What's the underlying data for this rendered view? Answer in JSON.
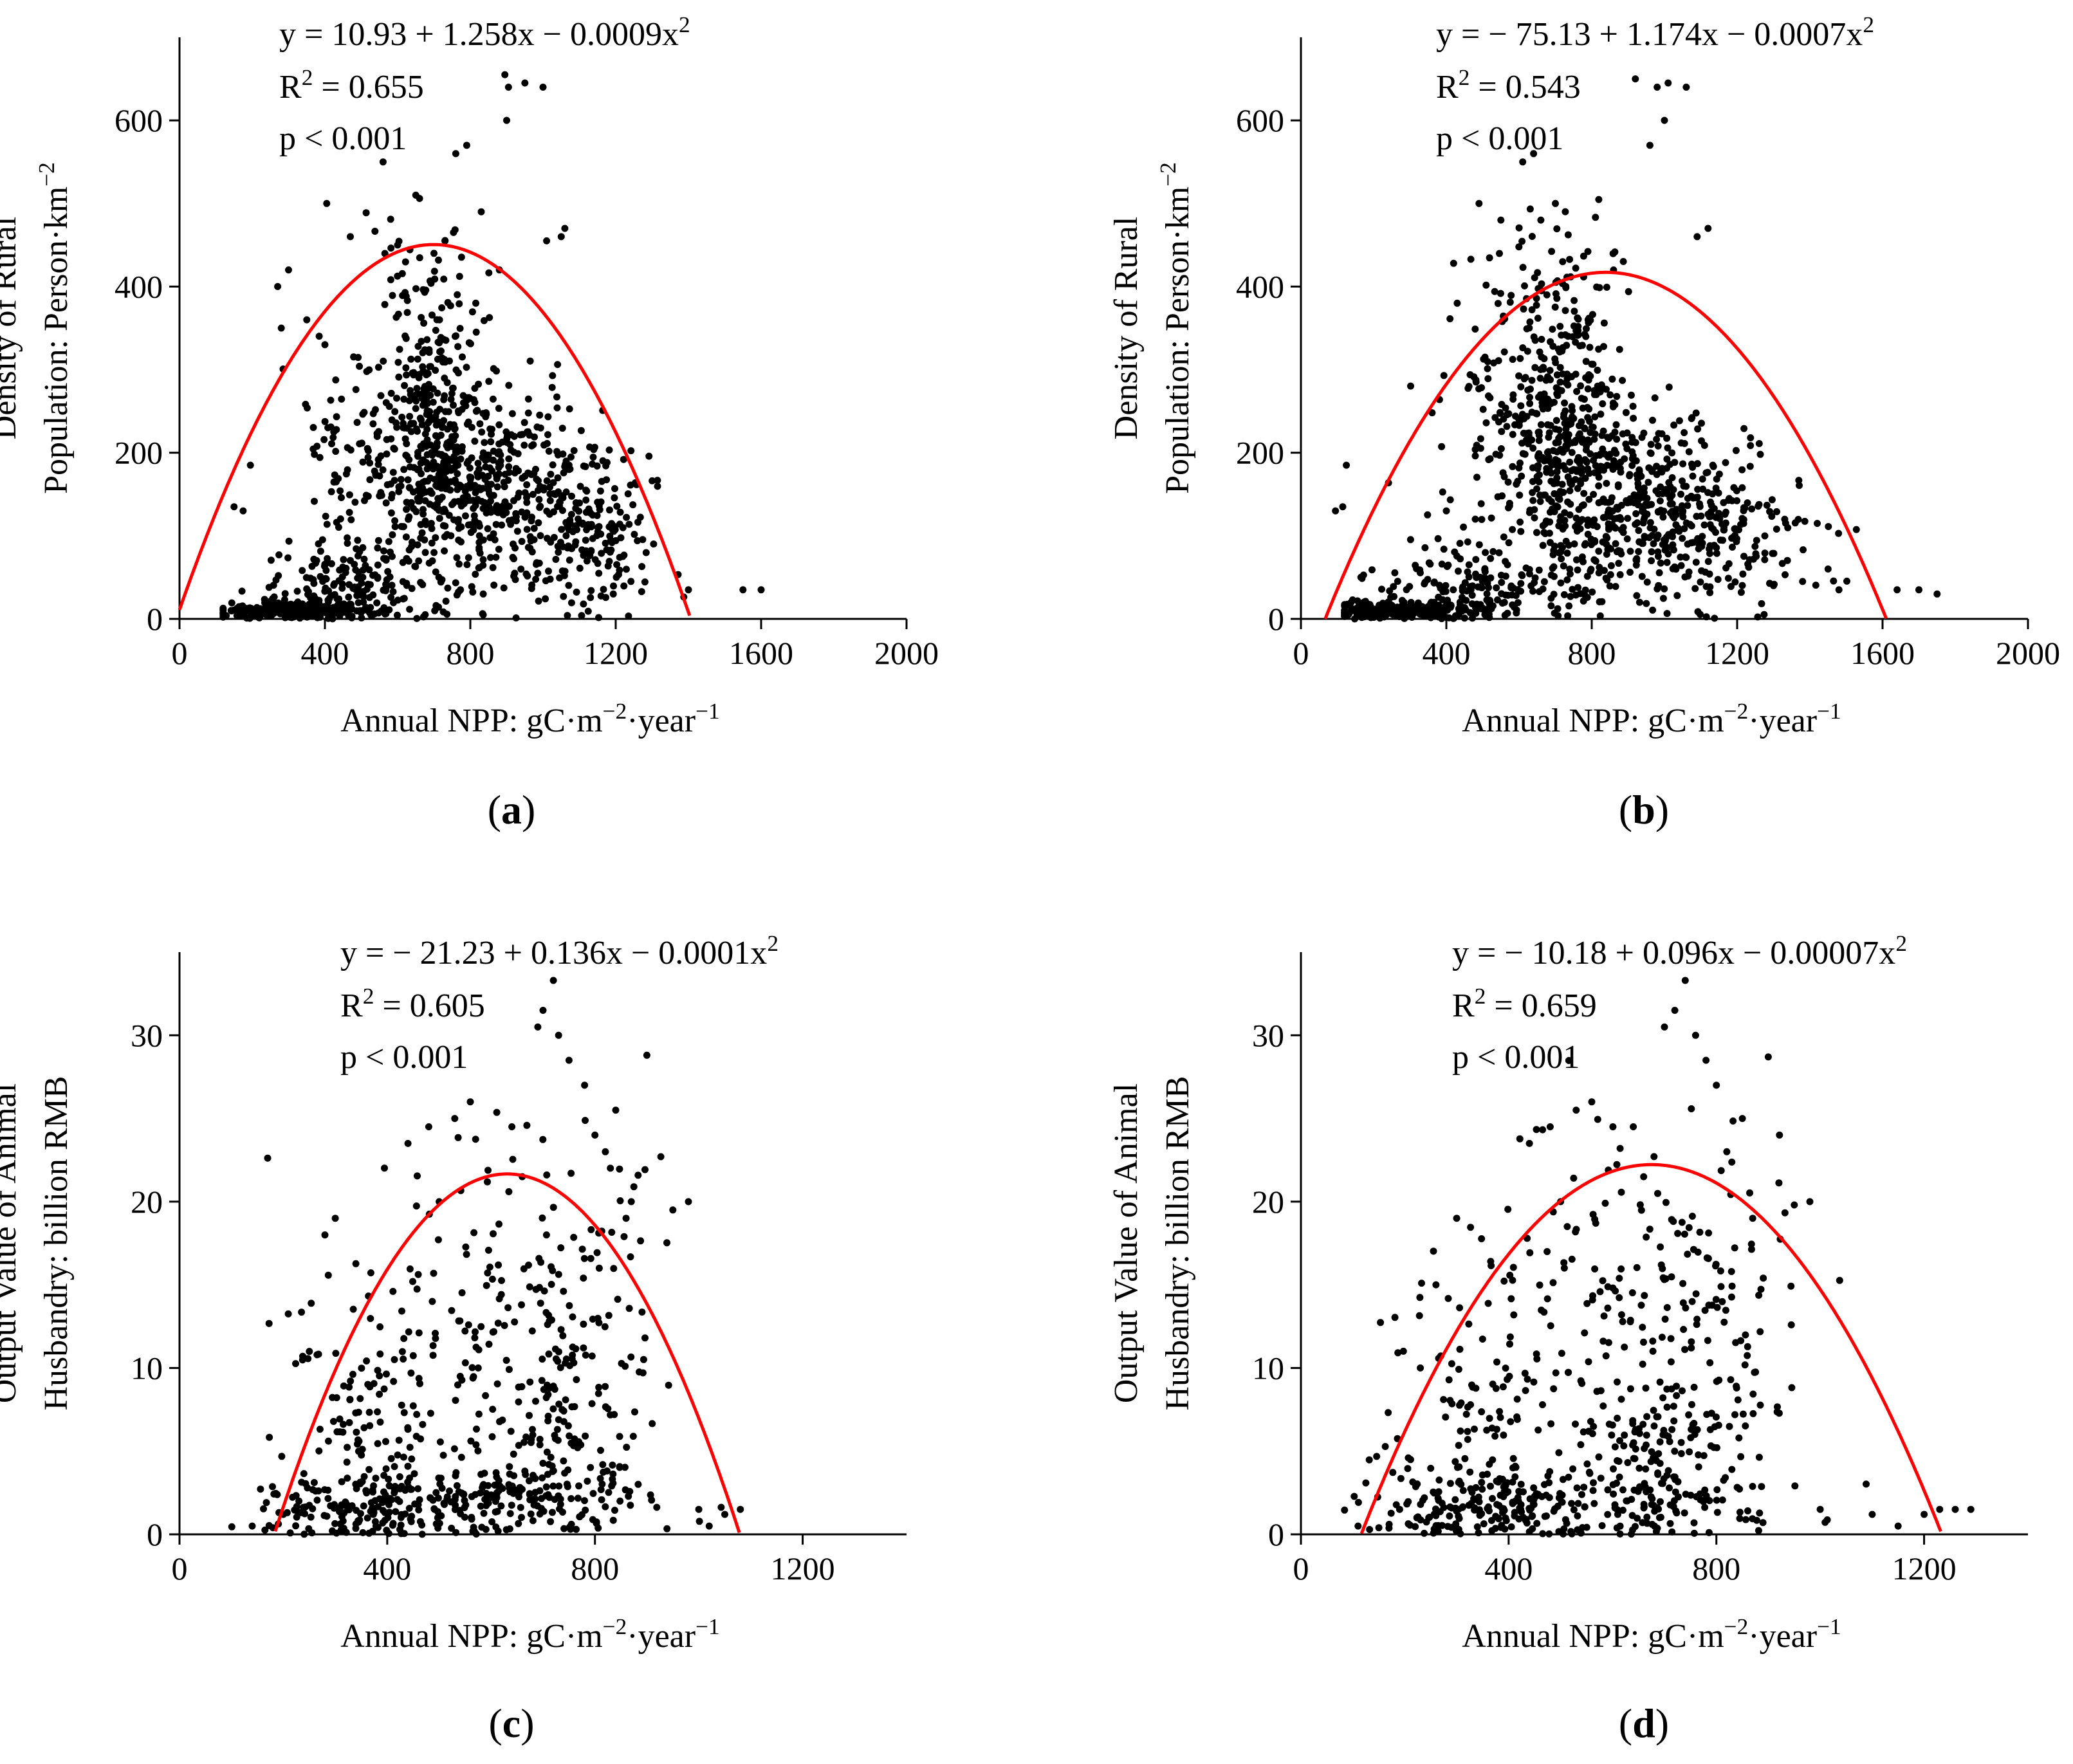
{
  "figure": {
    "panels": [
      {
        "id": "a",
        "label_open": "(",
        "label_letter": "a",
        "label_close": ")"
      },
      {
        "id": "b",
        "label_open": "(",
        "label_letter": "b",
        "label_close": ")"
      },
      {
        "id": "c",
        "label_open": "(",
        "label_letter": "c",
        "label_close": ")"
      },
      {
        "id": "d",
        "label_open": "(",
        "label_letter": "d",
        "label_close": ")"
      }
    ]
  },
  "chart_data": [
    {
      "type": "scatter",
      "panel": "a",
      "xlabel": {
        "base": "Annual NPP: gC·m",
        "sup1": "−2",
        "mid": "·year",
        "sup2": "−1"
      },
      "ylabel_line1": "Density of Rural",
      "ylabel_line2": {
        "base": "Population: Person·km",
        "sup": "−2"
      },
      "xlim": [
        0,
        2000
      ],
      "ylim": [
        0,
        700
      ],
      "xticks": [
        0,
        400,
        800,
        1200,
        1600,
        2000
      ],
      "yticks": [
        0,
        200,
        400,
        600
      ],
      "fit": {
        "a": 10.93,
        "b": 1.258,
        "c": -0.0009,
        "color": "#ff0000"
      },
      "equation": {
        "base": "y = 10.93 + 1.258x − 0.0009x",
        "sup": "2"
      },
      "r2": {
        "r": "R",
        "sup": "2",
        "rest": " = 0.655"
      },
      "p": "p < 0.001",
      "clusters": [
        {
          "cx": 320,
          "cy": 10,
          "sx": 110,
          "sy": 6,
          "n": 220
        },
        {
          "cx": 480,
          "cy": 40,
          "sx": 130,
          "sy": 25,
          "n": 160
        },
        {
          "cx": 700,
          "cy": 230,
          "sx": 70,
          "sy": 80,
          "n": 320
        },
        {
          "cx": 880,
          "cy": 150,
          "sx": 150,
          "sy": 60,
          "n": 420
        },
        {
          "cx": 1120,
          "cy": 110,
          "sx": 110,
          "sy": 55,
          "n": 160
        },
        {
          "cx": 500,
          "cy": 200,
          "sx": 80,
          "sy": 60,
          "n": 80
        },
        {
          "cx": 650,
          "cy": 420,
          "sx": 110,
          "sy": 40,
          "n": 40
        }
      ],
      "points": [
        [
          150,
          135
        ],
        [
          175,
          130
        ],
        [
          195,
          185
        ],
        [
          270,
          400
        ],
        [
          280,
          350
        ],
        [
          300,
          420
        ],
        [
          350,
          360
        ],
        [
          400,
          330
        ],
        [
          405,
          500
        ],
        [
          470,
          460
        ],
        [
          560,
          550
        ],
        [
          600,
          450
        ],
        [
          650,
          510
        ],
        [
          700,
          440
        ],
        [
          760,
          560
        ],
        [
          790,
          570
        ],
        [
          815,
          380
        ],
        [
          830,
          490
        ],
        [
          880,
          420
        ],
        [
          895,
          655
        ],
        [
          900,
          600
        ],
        [
          905,
          640
        ],
        [
          950,
          645
        ],
        [
          1000,
          640
        ],
        [
          1010,
          455
        ],
        [
          1050,
          460
        ],
        [
          1060,
          470
        ],
        [
          1400,
          35
        ],
        [
          1550,
          35
        ],
        [
          1600,
          35
        ]
      ]
    },
    {
      "type": "scatter",
      "panel": "b",
      "xlabel": {
        "base": "Annual NPP: gC·m",
        "sup1": "−2",
        "mid": "·year",
        "sup2": "−1"
      },
      "ylabel_line1": "Density of Rural",
      "ylabel_line2": {
        "base": "Population: Person·km",
        "sup": "−2"
      },
      "xlim": [
        0,
        2000
      ],
      "ylim": [
        0,
        700
      ],
      "xticks": [
        0,
        400,
        800,
        1200,
        1600,
        2000
      ],
      "yticks": [
        0,
        200,
        400,
        600
      ],
      "fit": {
        "a": -75.13,
        "b": 1.174,
        "c": -0.0007,
        "color": "#ff0000"
      },
      "equation": {
        "base": "y = − 75.13 + 1.174x − 0.0007x",
        "sup": "2"
      },
      "r2": {
        "r": "R",
        "sup": "2",
        "rest": " = 0.543"
      },
      "p": "p < 0.001",
      "clusters": [
        {
          "cx": 300,
          "cy": 10,
          "sx": 120,
          "sy": 6,
          "n": 220
        },
        {
          "cx": 480,
          "cy": 40,
          "sx": 140,
          "sy": 25,
          "n": 150
        },
        {
          "cx": 720,
          "cy": 230,
          "sx": 75,
          "sy": 85,
          "n": 320
        },
        {
          "cx": 880,
          "cy": 140,
          "sx": 160,
          "sy": 60,
          "n": 420
        },
        {
          "cx": 1150,
          "cy": 110,
          "sx": 130,
          "sy": 55,
          "n": 180
        },
        {
          "cx": 550,
          "cy": 250,
          "sx": 80,
          "sy": 70,
          "n": 80
        },
        {
          "cx": 650,
          "cy": 420,
          "sx": 110,
          "sy": 40,
          "n": 40
        }
      ],
      "points": [
        [
          95,
          130
        ],
        [
          115,
          135
        ],
        [
          125,
          185
        ],
        [
          160,
          15
        ],
        [
          400,
          130
        ],
        [
          430,
          380
        ],
        [
          490,
          500
        ],
        [
          550,
          480
        ],
        [
          610,
          550
        ],
        [
          640,
          560
        ],
        [
          660,
          480
        ],
        [
          700,
          500
        ],
        [
          720,
          430
        ],
        [
          790,
          360
        ],
        [
          860,
          420
        ],
        [
          920,
          650
        ],
        [
          960,
          570
        ],
        [
          980,
          640
        ],
        [
          1000,
          600
        ],
        [
          1010,
          645
        ],
        [
          1060,
          640
        ],
        [
          1090,
          460
        ],
        [
          1120,
          470
        ],
        [
          1300,
          40
        ],
        [
          1380,
          45
        ],
        [
          1450,
          60
        ],
        [
          1480,
          35
        ],
        [
          1640,
          35
        ],
        [
          1700,
          35
        ],
        [
          1750,
          30
        ]
      ]
    },
    {
      "type": "scatter",
      "panel": "c",
      "xlabel": {
        "base": "Annual NPP: gC·m",
        "sup1": "−2",
        "mid": "·year",
        "sup2": "−1"
      },
      "ylabel_line1": "Output Value of Animal",
      "ylabel_line2": {
        "base": "Husbandry: billion RMB",
        "sup": ""
      },
      "xlim": [
        0,
        1400
      ],
      "ylim": [
        0,
        35
      ],
      "xticks": [
        0,
        400,
        800,
        1200
      ],
      "yticks": [
        0,
        10,
        20,
        30
      ],
      "fit": {
        "a": -21.23,
        "b": 0.136,
        "c": -0.0001078,
        "color": "#ff0000"
      },
      "equation": {
        "base": "y = − 21.23 + 0.136x − 0.0001x",
        "sup": "2"
      },
      "r2": {
        "r": "R",
        "sup": "2",
        "rest": " = 0.605"
      },
      "p": "p < 0.001",
      "clusters": [
        {
          "cx": 330,
          "cy": 1.5,
          "sx": 90,
          "sy": 1.2,
          "n": 150
        },
        {
          "cx": 600,
          "cy": 2.0,
          "sx": 150,
          "sy": 1.2,
          "n": 140
        },
        {
          "cx": 340,
          "cy": 8,
          "sx": 80,
          "sy": 4,
          "n": 80
        },
        {
          "cx": 560,
          "cy": 12,
          "sx": 120,
          "sy": 6,
          "n": 130
        },
        {
          "cx": 760,
          "cy": 12,
          "sx": 90,
          "sy": 6,
          "n": 130
        },
        {
          "cx": 720,
          "cy": 4,
          "sx": 120,
          "sy": 2.5,
          "n": 80
        }
      ],
      "points": [
        [
          140,
          0.5
        ],
        [
          180,
          0.4
        ],
        [
          200,
          1.2
        ],
        [
          230,
          2
        ],
        [
          250,
          11
        ],
        [
          280,
          18
        ],
        [
          300,
          19
        ],
        [
          440,
          23.5
        ],
        [
          480,
          24.5
        ],
        [
          500,
          20
        ],
        [
          530,
          25
        ],
        [
          560,
          26
        ],
        [
          640,
          24.5
        ],
        [
          660,
          21.5
        ],
        [
          690,
          30.5
        ],
        [
          700,
          31.5
        ],
        [
          720,
          33.3
        ],
        [
          730,
          30
        ],
        [
          750,
          28.5
        ],
        [
          780,
          27
        ],
        [
          800,
          24
        ],
        [
          820,
          23
        ],
        [
          840,
          25.5
        ],
        [
          860,
          19
        ],
        [
          870,
          20
        ],
        [
          900,
          28.8
        ],
        [
          950,
          19.5
        ],
        [
          980,
          20
        ],
        [
          1000,
          1.5
        ],
        [
          1020,
          0.5
        ],
        [
          1050,
          1.2
        ],
        [
          1080,
          1.5
        ]
      ]
    },
    {
      "type": "scatter",
      "panel": "d",
      "xlabel": {
        "base": "Annual NPP: gC·m",
        "sup1": "−2",
        "mid": "·year",
        "sup2": "−1"
      },
      "ylabel_line1": "Output Value of Animal",
      "ylabel_line2": {
        "base": "Husbandry: billion RMB",
        "sup": ""
      },
      "xlim": [
        0,
        1400
      ],
      "ylim": [
        0,
        35
      ],
      "xticks": [
        0,
        400,
        800,
        1200
      ],
      "yticks": [
        0,
        10,
        20,
        30
      ],
      "fit": {
        "a": -10.18,
        "b": 0.096,
        "c": -7.11e-05,
        "color": "#ff0000"
      },
      "equation": {
        "base": "y = − 10.18 + 0.096x − 0.00007x",
        "sup": "2"
      },
      "r2": {
        "r": "R",
        "sup": "2",
        "rest": " = 0.659"
      },
      "p": "p < 0.001",
      "clusters": [
        {
          "cx": 330,
          "cy": 1.5,
          "sx": 100,
          "sy": 1.2,
          "n": 150
        },
        {
          "cx": 620,
          "cy": 2.0,
          "sx": 160,
          "sy": 1.2,
          "n": 140
        },
        {
          "cx": 330,
          "cy": 8,
          "sx": 90,
          "sy": 4,
          "n": 80
        },
        {
          "cx": 560,
          "cy": 12,
          "sx": 120,
          "sy": 6,
          "n": 130
        },
        {
          "cx": 760,
          "cy": 12,
          "sx": 90,
          "sy": 6,
          "n": 130
        },
        {
          "cx": 740,
          "cy": 4,
          "sx": 120,
          "sy": 2.5,
          "n": 80
        }
      ],
      "points": [
        [
          110,
          0.5
        ],
        [
          150,
          0.4
        ],
        [
          190,
          1.5
        ],
        [
          230,
          10
        ],
        [
          260,
          15
        ],
        [
          300,
          19
        ],
        [
          440,
          23.5
        ],
        [
          480,
          24.5
        ],
        [
          500,
          20
        ],
        [
          530,
          25.5
        ],
        [
          560,
          26
        ],
        [
          640,
          24.5
        ],
        [
          660,
          21.5
        ],
        [
          700,
          30.5
        ],
        [
          720,
          31.5
        ],
        [
          740,
          33.3
        ],
        [
          760,
          30
        ],
        [
          780,
          28.5
        ],
        [
          800,
          27
        ],
        [
          820,
          23
        ],
        [
          850,
          25
        ],
        [
          870,
          19
        ],
        [
          900,
          28.7
        ],
        [
          950,
          19.8
        ],
        [
          980,
          20
        ],
        [
          1000,
          1.5
        ],
        [
          1100,
          1.2
        ],
        [
          1150,
          0.5
        ],
        [
          1200,
          1.2
        ],
        [
          1230,
          1.5
        ],
        [
          1260,
          1.5
        ],
        [
          1290,
          1.5
        ]
      ]
    }
  ]
}
